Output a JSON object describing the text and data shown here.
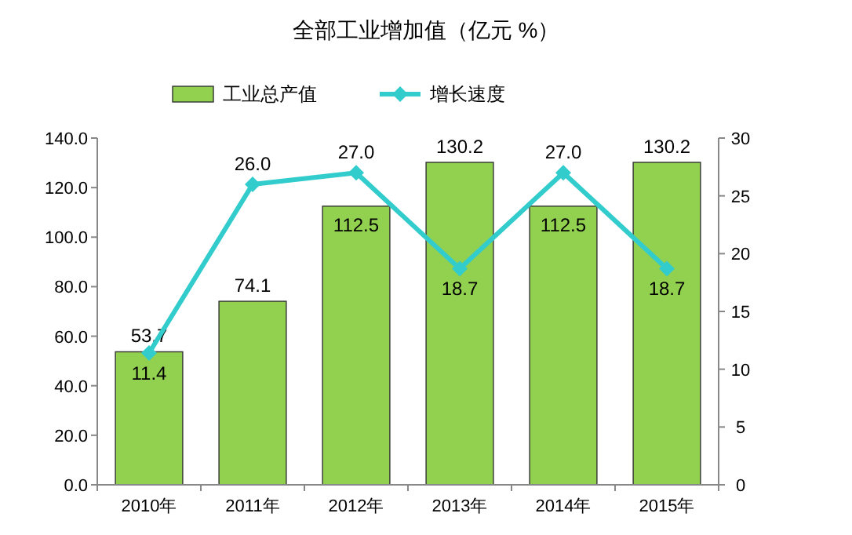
{
  "chart_data": {
    "type": "bar",
    "title": "全部工业增加值（亿元 %）",
    "categories": [
      "2010年",
      "2011年",
      "2012年",
      "2013年",
      "2014年",
      "2015年"
    ],
    "series": [
      {
        "name": "工业总产值",
        "color": "#92d050",
        "values": [
          53.7,
          74.1,
          112.5,
          130.2,
          112.5,
          130.2
        ],
        "value_labels": [
          "53.7",
          "74.1",
          "112.5",
          "130.2",
          "112.5",
          "130.2"
        ]
      },
      {
        "name": "增长速度",
        "type": "line",
        "axis": "y2",
        "color": "#33cccc",
        "marker": "diamond",
        "values": [
          11.4,
          26.0,
          27.0,
          18.7,
          27.0,
          18.7
        ],
        "value_labels": [
          "11.4",
          "26.0",
          "27.0",
          "18.7",
          "27.0",
          "18.7"
        ]
      }
    ],
    "ylim": [
      0,
      140
    ],
    "yticks": [
      {
        "value": 0,
        "label": "0.0"
      },
      {
        "value": 20,
        "label": "20.0"
      },
      {
        "value": 40,
        "label": "40.0"
      },
      {
        "value": 60,
        "label": "60.0"
      },
      {
        "value": 80,
        "label": "80.0"
      },
      {
        "value": 100,
        "label": "100.0"
      },
      {
        "value": 120,
        "label": "120.0"
      },
      {
        "value": 140,
        "label": "140.0"
      }
    ],
    "y2lim": [
      0,
      30
    ],
    "y2ticks": [
      0,
      5,
      10,
      15,
      20,
      25,
      30
    ],
    "grid": false,
    "legend": "top"
  }
}
